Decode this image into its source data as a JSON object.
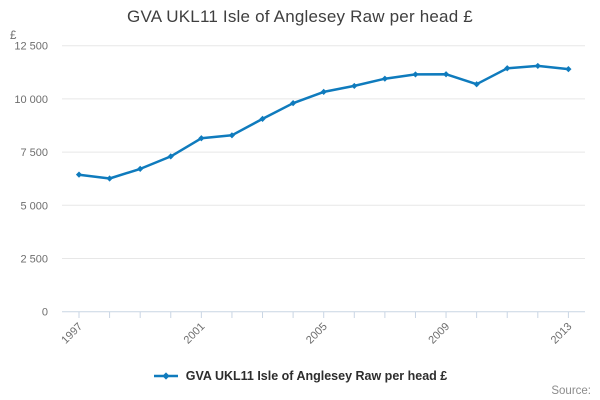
{
  "chart_data": {
    "type": "line",
    "title": "GVA UKL11 Isle of Anglesey Raw per head £",
    "ylabel": "£",
    "xlabel": "",
    "x": [
      1997,
      1998,
      1999,
      2000,
      2001,
      2002,
      2003,
      2004,
      2005,
      2006,
      2007,
      2008,
      2009,
      2010,
      2011,
      2012,
      2013
    ],
    "series": [
      {
        "name": "GVA UKL11 Isle of Anglesey Raw per head £",
        "values": [
          6440,
          6260,
          6710,
          7300,
          8150,
          8290,
          9060,
          9800,
          10330,
          10610,
          10950,
          11150,
          11160,
          10690,
          11440,
          11550,
          11400
        ]
      }
    ],
    "ylim": [
      0,
      12500
    ],
    "y_ticks": [
      0,
      2500,
      5000,
      7500,
      10000,
      12500
    ],
    "y_tick_labels": [
      "0",
      "2 500",
      "5 000",
      "7 500",
      "10 000",
      "12 500"
    ],
    "x_tick_label_years": [
      1997,
      2001,
      2005,
      2009,
      2013
    ],
    "grid": "horizontal-only",
    "legend_position": "bottom-center",
    "line_color": "#0f7bbd",
    "axis_color": "#c9d5e4",
    "grid_color": "#e7e7e7",
    "tick_text_color": "#6e6e6e",
    "title_color": "#3f3f3f"
  },
  "legend": {
    "label": "GVA UKL11 Isle of Anglesey Raw per head £"
  },
  "footer": {
    "source_label": "Source:"
  }
}
